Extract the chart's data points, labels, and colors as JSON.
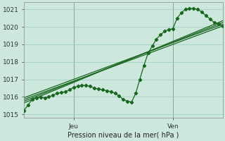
{
  "title": "Pression niveau de la mer( hPa )",
  "bg_color": "#cce8dc",
  "grid_color": "#99ccbb",
  "line_color": "#1a6620",
  "vline_color": "#555555",
  "ylim": [
    1014.8,
    1021.4
  ],
  "xlim": [
    0,
    48
  ],
  "yticks": [
    1015,
    1016,
    1017,
    1018,
    1019,
    1020,
    1021
  ],
  "xtick_positions": [
    12,
    36
  ],
  "xtick_labels": [
    "Jeu",
    "Ven"
  ],
  "vlines": [
    12,
    36
  ],
  "straight_lines": [
    {
      "x": [
        0,
        48
      ],
      "y": [
        1015.85,
        1020.05
      ]
    },
    {
      "x": [
        0,
        48
      ],
      "y": [
        1015.95,
        1020.15
      ]
    },
    {
      "x": [
        0,
        48
      ],
      "y": [
        1015.75,
        1020.25
      ]
    },
    {
      "x": [
        0,
        48
      ],
      "y": [
        1015.65,
        1020.35
      ]
    }
  ],
  "marker_line": {
    "x": [
      0,
      1,
      2,
      3,
      4,
      5,
      6,
      7,
      8,
      9,
      10,
      11,
      12,
      13,
      14,
      15,
      16,
      17,
      18,
      19,
      20,
      21,
      22,
      23,
      24,
      25,
      26,
      27,
      28,
      29,
      30,
      31,
      32,
      33,
      34,
      35,
      36,
      37,
      38,
      39,
      40,
      41,
      42,
      43,
      44,
      45,
      46,
      47,
      48
    ],
    "y": [
      1015.2,
      1015.55,
      1015.85,
      1015.95,
      1015.98,
      1015.95,
      1016.0,
      1016.1,
      1016.2,
      1016.25,
      1016.3,
      1016.4,
      1016.55,
      1016.6,
      1016.65,
      1016.65,
      1016.6,
      1016.5,
      1016.45,
      1016.4,
      1016.35,
      1016.3,
      1016.2,
      1016.05,
      1015.85,
      1015.75,
      1015.7,
      1016.2,
      1017.0,
      1017.8,
      1018.5,
      1018.9,
      1019.3,
      1019.55,
      1019.75,
      1019.85,
      1019.9,
      1020.5,
      1020.8,
      1021.0,
      1021.05,
      1021.05,
      1021.0,
      1020.85,
      1020.65,
      1020.45,
      1020.25,
      1020.15,
      1020.05
    ]
  }
}
